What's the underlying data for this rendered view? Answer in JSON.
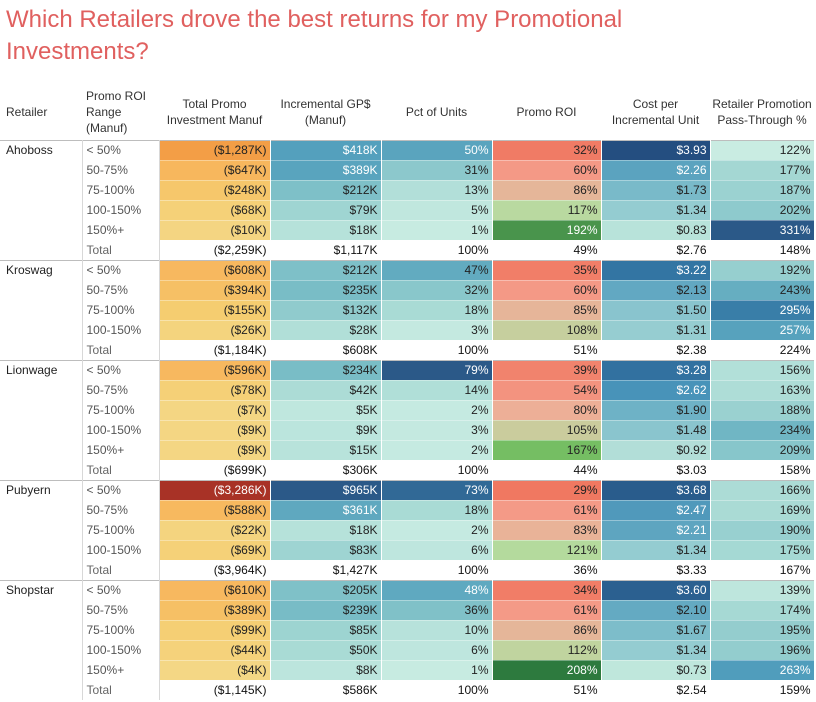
{
  "title": "Which Retailers drove the best returns for my Promotional Investments?",
  "chart_data": {
    "type": "table",
    "columns": [
      "Retailer",
      "Promo ROI Range (Manuf)",
      "Total Promo Investment Manuf",
      "Incremental GP$ (Manuf)",
      "Pct of Units",
      "Promo ROI",
      "Cost per Incremental Unit",
      "Retailer Promotion Pass-Through %"
    ],
    "groups": [
      {
        "retailer": "Ahoboss",
        "rows": [
          {
            "range": "< 50%",
            "investment": "($1,287K)",
            "gp": "$418K",
            "pct_units": "50%",
            "roi": "32%",
            "cost": "$3.93",
            "pass": "122%"
          },
          {
            "range": "50-75%",
            "investment": "($647K)",
            "gp": "$389K",
            "pct_units": "31%",
            "roi": "60%",
            "cost": "$2.26",
            "pass": "177%"
          },
          {
            "range": "75-100%",
            "investment": "($248K)",
            "gp": "$212K",
            "pct_units": "13%",
            "roi": "86%",
            "cost": "$1.73",
            "pass": "187%"
          },
          {
            "range": "100-150%",
            "investment": "($68K)",
            "gp": "$79K",
            "pct_units": "5%",
            "roi": "117%",
            "cost": "$1.34",
            "pass": "202%"
          },
          {
            "range": "150%+",
            "investment": "($10K)",
            "gp": "$18K",
            "pct_units": "1%",
            "roi": "192%",
            "cost": "$0.83",
            "pass": "331%"
          }
        ],
        "total": {
          "range": "Total",
          "investment": "($2,259K)",
          "gp": "$1,117K",
          "pct_units": "100%",
          "roi": "49%",
          "cost": "$2.76",
          "pass": "148%"
        }
      },
      {
        "retailer": "Kroswag",
        "rows": [
          {
            "range": "< 50%",
            "investment": "($608K)",
            "gp": "$212K",
            "pct_units": "47%",
            "roi": "35%",
            "cost": "$3.22",
            "pass": "192%"
          },
          {
            "range": "50-75%",
            "investment": "($394K)",
            "gp": "$235K",
            "pct_units": "32%",
            "roi": "60%",
            "cost": "$2.13",
            "pass": "243%"
          },
          {
            "range": "75-100%",
            "investment": "($155K)",
            "gp": "$132K",
            "pct_units": "18%",
            "roi": "85%",
            "cost": "$1.50",
            "pass": "295%"
          },
          {
            "range": "100-150%",
            "investment": "($26K)",
            "gp": "$28K",
            "pct_units": "3%",
            "roi": "108%",
            "cost": "$1.31",
            "pass": "257%"
          }
        ],
        "total": {
          "range": "Total",
          "investment": "($1,184K)",
          "gp": "$608K",
          "pct_units": "100%",
          "roi": "51%",
          "cost": "$2.38",
          "pass": "224%"
        }
      },
      {
        "retailer": "Lionwage",
        "rows": [
          {
            "range": "< 50%",
            "investment": "($596K)",
            "gp": "$234K",
            "pct_units": "79%",
            "roi": "39%",
            "cost": "$3.28",
            "pass": "156%"
          },
          {
            "range": "50-75%",
            "investment": "($78K)",
            "gp": "$42K",
            "pct_units": "14%",
            "roi": "54%",
            "cost": "$2.62",
            "pass": "163%"
          },
          {
            "range": "75-100%",
            "investment": "($7K)",
            "gp": "$5K",
            "pct_units": "2%",
            "roi": "80%",
            "cost": "$1.90",
            "pass": "188%"
          },
          {
            "range": "100-150%",
            "investment": "($9K)",
            "gp": "$9K",
            "pct_units": "3%",
            "roi": "105%",
            "cost": "$1.48",
            "pass": "234%"
          },
          {
            "range": "150%+",
            "investment": "($9K)",
            "gp": "$15K",
            "pct_units": "2%",
            "roi": "167%",
            "cost": "$0.92",
            "pass": "209%"
          }
        ],
        "total": {
          "range": "Total",
          "investment": "($699K)",
          "gp": "$306K",
          "pct_units": "100%",
          "roi": "44%",
          "cost": "$3.03",
          "pass": "158%"
        }
      },
      {
        "retailer": "Pubyern",
        "rows": [
          {
            "range": "< 50%",
            "investment": "($3,286K)",
            "gp": "$965K",
            "pct_units": "73%",
            "roi": "29%",
            "cost": "$3.68",
            "pass": "166%"
          },
          {
            "range": "50-75%",
            "investment": "($588K)",
            "gp": "$361K",
            "pct_units": "18%",
            "roi": "61%",
            "cost": "$2.47",
            "pass": "169%"
          },
          {
            "range": "75-100%",
            "investment": "($22K)",
            "gp": "$18K",
            "pct_units": "2%",
            "roi": "83%",
            "cost": "$2.21",
            "pass": "190%"
          },
          {
            "range": "100-150%",
            "investment": "($69K)",
            "gp": "$83K",
            "pct_units": "6%",
            "roi": "121%",
            "cost": "$1.34",
            "pass": "175%"
          }
        ],
        "total": {
          "range": "Total",
          "investment": "($3,964K)",
          "gp": "$1,427K",
          "pct_units": "100%",
          "roi": "36%",
          "cost": "$3.33",
          "pass": "167%"
        }
      },
      {
        "retailer": "Shopstar",
        "rows": [
          {
            "range": "< 50%",
            "investment": "($610K)",
            "gp": "$205K",
            "pct_units": "48%",
            "roi": "34%",
            "cost": "$3.60",
            "pass": "139%"
          },
          {
            "range": "50-75%",
            "investment": "($389K)",
            "gp": "$239K",
            "pct_units": "36%",
            "roi": "61%",
            "cost": "$2.10",
            "pass": "174%"
          },
          {
            "range": "75-100%",
            "investment": "($99K)",
            "gp": "$85K",
            "pct_units": "10%",
            "roi": "86%",
            "cost": "$1.67",
            "pass": "195%"
          },
          {
            "range": "100-150%",
            "investment": "($44K)",
            "gp": "$50K",
            "pct_units": "6%",
            "roi": "112%",
            "cost": "$1.34",
            "pass": "196%"
          },
          {
            "range": "150%+",
            "investment": "($4K)",
            "gp": "$8K",
            "pct_units": "1%",
            "roi": "208%",
            "cost": "$0.73",
            "pass": "263%"
          }
        ],
        "total": {
          "range": "Total",
          "investment": "($1,145K)",
          "gp": "$586K",
          "pct_units": "100%",
          "roi": "51%",
          "cost": "$2.54",
          "pass": "159%"
        }
      }
    ]
  }
}
